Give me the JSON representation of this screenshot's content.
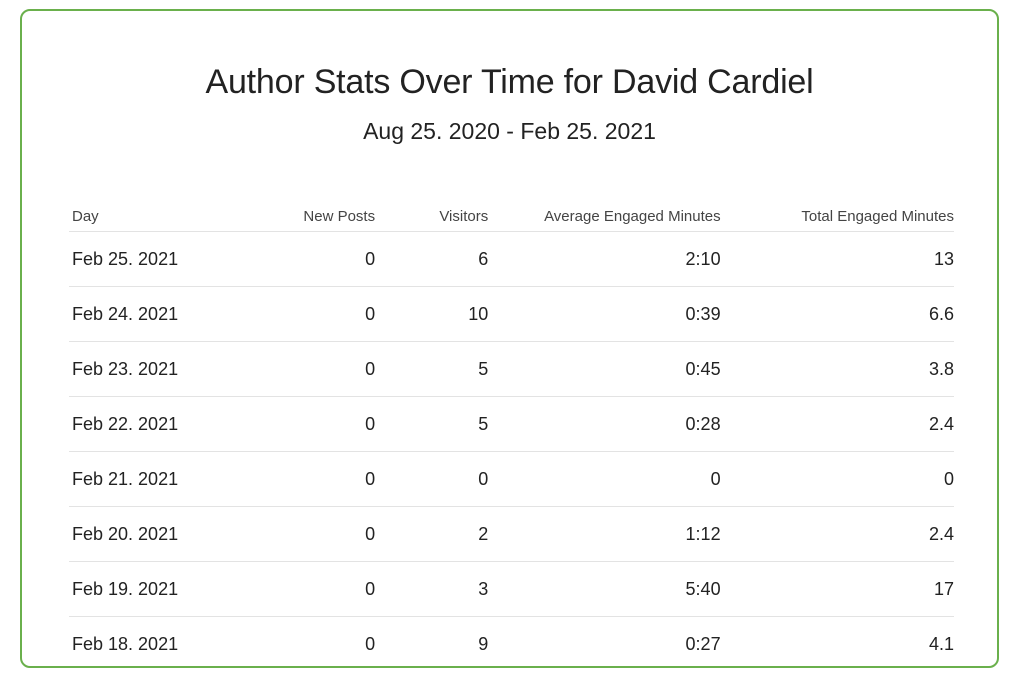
{
  "header": {
    "title": "Author Stats Over Time for David Cardiel",
    "date_range": "Aug 25. 2020 - Feb 25. 2021"
  },
  "table": {
    "columns": [
      "Day",
      "New Posts",
      "Visitors",
      "Average Engaged Minutes",
      "Total Engaged Minutes"
    ],
    "rows": [
      [
        "Feb 25. 2021",
        "0",
        "6",
        "2:10",
        "13"
      ],
      [
        "Feb 24. 2021",
        "0",
        "10",
        "0:39",
        "6.6"
      ],
      [
        "Feb 23. 2021",
        "0",
        "5",
        "0:45",
        "3.8"
      ],
      [
        "Feb 22. 2021",
        "0",
        "5",
        "0:28",
        "2.4"
      ],
      [
        "Feb 21. 2021",
        "0",
        "0",
        "0",
        "0"
      ],
      [
        "Feb 20. 2021",
        "0",
        "2",
        "1:12",
        "2.4"
      ],
      [
        "Feb 19. 2021",
        "0",
        "3",
        "5:40",
        "17"
      ],
      [
        "Feb 18. 2021",
        "0",
        "9",
        "0:27",
        "4.1"
      ]
    ]
  },
  "colors": {
    "card_border": "#6ab04c",
    "row_divider": "#e3e3e3"
  }
}
